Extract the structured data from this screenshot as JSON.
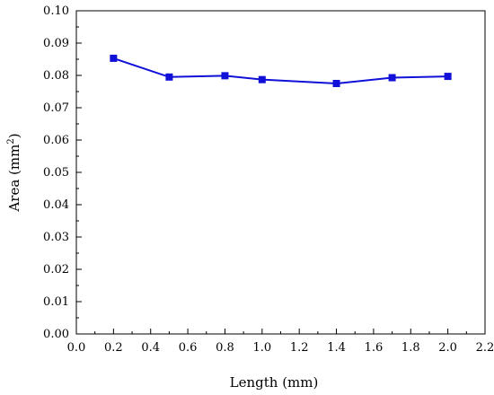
{
  "chart_data": {
    "type": "line",
    "title": "",
    "xlabel": "Length (mm)",
    "ylabel_main": "Area (mm",
    "ylabel_sup": "2",
    "ylabel_close": ")",
    "xlim": [
      0.0,
      2.2
    ],
    "ylim": [
      0.0,
      0.1
    ],
    "xticks": [
      "0.0",
      "0.2",
      "0.4",
      "0.6",
      "0.8",
      "1.0",
      "1.2",
      "1.4",
      "1.6",
      "1.8",
      "2.0",
      "2.2"
    ],
    "yticks": [
      "0.00",
      "0.01",
      "0.02",
      "0.03",
      "0.04",
      "0.05",
      "0.06",
      "0.07",
      "0.08",
      "0.09",
      "0.10"
    ],
    "grid": false,
    "legend": "none",
    "series": [
      {
        "color": "#1010d8",
        "marker": "square",
        "x": [
          0.2,
          0.5,
          0.8,
          1.0,
          1.4,
          1.7,
          2.0
        ],
        "y": [
          0.0853,
          0.0795,
          0.0799,
          0.0787,
          0.0775,
          0.0793,
          0.0797
        ]
      }
    ]
  }
}
